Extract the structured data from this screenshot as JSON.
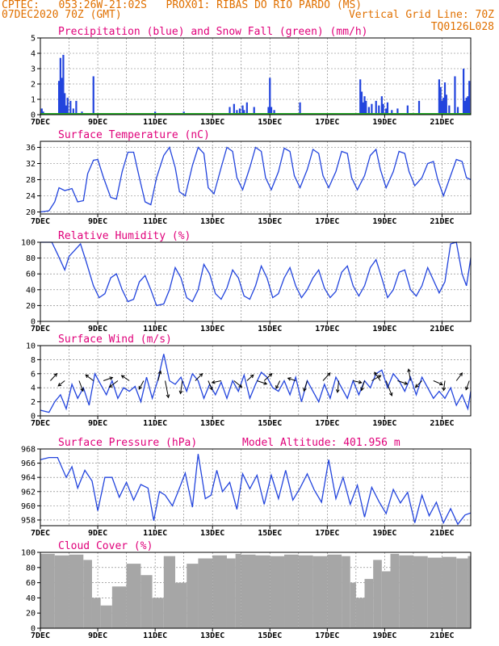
{
  "header": {
    "line1": "CPTEC:   053:26W-21:02S   PROX01: RIBAS DO RIO PARDO (MS)",
    "line2_left": "07DEC2020 70Z (GMT)",
    "line2_right": "Vertical Grid Line: 70Z",
    "line3_right": "TQ0126L028"
  },
  "colors": {
    "header": "#e07000",
    "title": "#e0007a",
    "line": "#2244dd",
    "snow": "#22aa22",
    "cloud": "#a6a6a6"
  },
  "x_axis": {
    "day_min": 7,
    "day_max": 22,
    "ticks": [
      {
        "day": 7,
        "label": "7DEC"
      },
      {
        "day": 9,
        "label": "9DEC"
      },
      {
        "day": 11,
        "label": "11DEC"
      },
      {
        "day": 13,
        "label": "13DEC"
      },
      {
        "day": 15,
        "label": "15DEC"
      },
      {
        "day": 17,
        "label": "17DEC"
      },
      {
        "day": 19,
        "label": "19DEC"
      },
      {
        "day": 21,
        "label": "21DEC"
      }
    ]
  },
  "chart_data": [
    {
      "id": "precip",
      "type": "bar",
      "title": "Precipitation (blue) and Snow Fall (green) (mm/h)",
      "ylim": [
        0,
        5
      ],
      "yticks": [
        0,
        1,
        2,
        3,
        4,
        5
      ],
      "x_day": [
        7.05,
        7.1,
        7.65,
        7.7,
        7.75,
        7.8,
        7.85,
        7.9,
        7.95,
        8.05,
        8.15,
        8.25,
        8.45,
        8.85,
        11.0,
        12.0,
        13.6,
        13.75,
        13.85,
        13.95,
        14.05,
        14.1,
        14.2,
        14.45,
        14.95,
        15.0,
        15.05,
        15.15,
        16.05,
        18.15,
        18.2,
        18.25,
        18.3,
        18.35,
        18.45,
        18.55,
        18.7,
        18.8,
        18.9,
        18.95,
        19.05,
        19.1,
        19.25,
        19.45,
        19.8,
        20.2,
        20.9,
        20.95,
        21.0,
        21.05,
        21.1,
        21.15,
        21.25,
        21.45,
        21.55,
        21.75,
        21.8,
        21.85,
        21.9,
        21.95
      ],
      "values": [
        0.4,
        0.2,
        2.2,
        3.7,
        2.4,
        3.9,
        1.4,
        0.6,
        1.1,
        0.9,
        0.4,
        0.9,
        0.2,
        2.5,
        0.2,
        0.2,
        0.5,
        0.7,
        0.3,
        0.4,
        0.6,
        0.3,
        0.8,
        0.5,
        0.5,
        2.4,
        0.5,
        0.3,
        0.8,
        2.3,
        1.5,
        0.8,
        1.2,
        0.9,
        0.5,
        0.7,
        0.9,
        0.6,
        1.2,
        0.7,
        0.4,
        0.8,
        0.3,
        0.4,
        0.6,
        0.9,
        2.3,
        1.8,
        0.9,
        1.1,
        2.1,
        1.3,
        0.6,
        2.5,
        0.5,
        3.0,
        0.9,
        1.1,
        1.2,
        2.2
      ],
      "snow_note": "snow series ~0 across period"
    },
    {
      "id": "temp",
      "type": "line",
      "title": "Surface Temperature (nC)",
      "ylim": [
        19.5,
        37.5
      ],
      "yticks": [
        20,
        24,
        28,
        32,
        36
      ],
      "x_day": [
        7.0,
        7.3,
        7.5,
        7.65,
        7.85,
        8.1,
        8.3,
        8.5,
        8.65,
        8.85,
        9.0,
        9.2,
        9.45,
        9.65,
        9.85,
        10.05,
        10.25,
        10.45,
        10.65,
        10.85,
        11.05,
        11.3,
        11.5,
        11.7,
        11.85,
        12.05,
        12.3,
        12.5,
        12.7,
        12.85,
        13.05,
        13.3,
        13.5,
        13.7,
        13.85,
        14.05,
        14.3,
        14.5,
        14.7,
        14.85,
        15.05,
        15.3,
        15.5,
        15.7,
        15.85,
        16.05,
        16.3,
        16.5,
        16.7,
        16.85,
        17.05,
        17.3,
        17.5,
        17.7,
        17.85,
        18.05,
        18.3,
        18.5,
        18.7,
        18.85,
        19.05,
        19.3,
        19.5,
        19.7,
        19.85,
        20.05,
        20.3,
        20.5,
        20.7,
        20.85,
        21.05,
        21.3,
        21.5,
        21.7,
        21.85,
        22.0
      ],
      "values": [
        20.0,
        20.3,
        22.5,
        26.0,
        25.3,
        25.8,
        22.5,
        22.8,
        29.5,
        32.8,
        33.0,
        28.5,
        23.6,
        23.2,
        30.0,
        34.8,
        34.8,
        28.5,
        22.5,
        21.8,
        28.5,
        34.0,
        36.0,
        31.0,
        25.0,
        24.0,
        31.5,
        36.0,
        34.5,
        26.0,
        24.5,
        31.0,
        36.0,
        35.0,
        28.5,
        25.5,
        31.0,
        36.0,
        35.0,
        28.5,
        25.5,
        30.0,
        35.8,
        35.0,
        29.0,
        26.0,
        30.5,
        35.5,
        34.5,
        29.0,
        26.0,
        30.0,
        35.0,
        34.5,
        28.5,
        25.5,
        29.0,
        34.0,
        35.5,
        30.5,
        26.0,
        30.0,
        35.0,
        34.5,
        30.0,
        26.5,
        28.5,
        32.0,
        32.5,
        28.0,
        24.0,
        29.0,
        33.0,
        32.5,
        28.5,
        28.0
      ]
    },
    {
      "id": "rh",
      "type": "line",
      "title": "Relative Humidity (%)",
      "ylim": [
        0,
        100
      ],
      "yticks": [
        0,
        20,
        40,
        60,
        80,
        100
      ],
      "x_day": [
        7.0,
        7.4,
        7.6,
        7.85,
        8.0,
        8.2,
        8.4,
        8.6,
        8.85,
        9.05,
        9.25,
        9.45,
        9.65,
        9.85,
        10.05,
        10.25,
        10.45,
        10.65,
        10.85,
        11.05,
        11.3,
        11.5,
        11.7,
        11.9,
        12.1,
        12.3,
        12.5,
        12.7,
        12.9,
        13.1,
        13.3,
        13.5,
        13.7,
        13.9,
        14.1,
        14.3,
        14.5,
        14.7,
        14.9,
        15.1,
        15.3,
        15.5,
        15.7,
        15.9,
        16.1,
        16.3,
        16.5,
        16.7,
        16.9,
        17.1,
        17.3,
        17.5,
        17.7,
        17.9,
        18.1,
        18.3,
        18.5,
        18.7,
        18.9,
        19.1,
        19.3,
        19.5,
        19.7,
        19.9,
        20.1,
        20.3,
        20.5,
        20.7,
        20.9,
        21.1,
        21.3,
        21.5,
        21.7,
        21.85,
        22.0
      ],
      "values": [
        100,
        100,
        85,
        65,
        82,
        90,
        98,
        75,
        45,
        30,
        35,
        55,
        60,
        40,
        25,
        28,
        50,
        58,
        40,
        20,
        22,
        40,
        68,
        55,
        30,
        25,
        40,
        72,
        60,
        35,
        28,
        42,
        65,
        55,
        32,
        28,
        45,
        70,
        55,
        30,
        35,
        55,
        68,
        45,
        30,
        40,
        55,
        65,
        42,
        30,
        38,
        62,
        70,
        45,
        32,
        45,
        68,
        78,
        55,
        30,
        40,
        62,
        65,
        40,
        32,
        45,
        68,
        52,
        36,
        50,
        98,
        100,
        60,
        45,
        80
      ]
    },
    {
      "id": "wind",
      "type": "line",
      "title": "Surface Wind (m/s)",
      "ylim": [
        0,
        10
      ],
      "yticks": [
        0,
        2,
        4,
        6,
        8,
        10
      ],
      "x_day": [
        7.0,
        7.3,
        7.5,
        7.7,
        7.9,
        8.1,
        8.3,
        8.5,
        8.7,
        8.9,
        9.1,
        9.3,
        9.5,
        9.7,
        9.9,
        10.1,
        10.3,
        10.5,
        10.7,
        10.9,
        11.1,
        11.3,
        11.5,
        11.7,
        11.9,
        12.1,
        12.3,
        12.5,
        12.7,
        12.9,
        13.1,
        13.3,
        13.5,
        13.7,
        13.9,
        14.1,
        14.3,
        14.5,
        14.7,
        14.9,
        15.1,
        15.3,
        15.5,
        15.7,
        15.9,
        16.1,
        16.3,
        16.5,
        16.7,
        16.9,
        17.1,
        17.3,
        17.5,
        17.7,
        17.9,
        18.1,
        18.3,
        18.5,
        18.7,
        18.9,
        19.1,
        19.3,
        19.5,
        19.7,
        19.9,
        20.1,
        20.3,
        20.5,
        20.7,
        20.9,
        21.1,
        21.3,
        21.5,
        21.7,
        21.9,
        22.0
      ],
      "values": [
        0.8,
        0.5,
        2.0,
        3.0,
        1.0,
        4.5,
        2.5,
        4.0,
        1.5,
        6.0,
        4.5,
        3.0,
        5.0,
        2.5,
        4.0,
        3.5,
        4.2,
        2.0,
        5.5,
        2.5,
        5.2,
        8.8,
        5.0,
        4.5,
        5.5,
        3.5,
        6.0,
        5.0,
        2.5,
        4.5,
        3.0,
        4.8,
        2.5,
        5.0,
        3.5,
        5.8,
        2.5,
        4.5,
        6.2,
        5.5,
        4.0,
        3.5,
        5.0,
        3.0,
        5.5,
        2.0,
        5.0,
        3.5,
        2.0,
        4.5,
        2.5,
        5.5,
        4.0,
        2.5,
        5.0,
        3.0,
        5.0,
        4.0,
        6.0,
        6.5,
        4.0,
        6.0,
        5.0,
        3.5,
        5.5,
        3.0,
        5.5,
        4.0,
        2.5,
        3.5,
        2.5,
        4.0,
        1.5,
        3.0,
        1.0,
        3.5
      ],
      "arrows": [
        {
          "day": 7.35,
          "dx": 1,
          "dy": -1.1
        },
        {
          "day": 7.85,
          "dx": -1,
          "dy": 0.8
        },
        {
          "day": 8.35,
          "dx": 0.6,
          "dy": 1.6
        },
        {
          "day": 8.85,
          "dx": -1.2,
          "dy": -0.9
        },
        {
          "day": 9.2,
          "dx": 1.4,
          "dy": -0.5
        },
        {
          "day": 9.7,
          "dx": -1.3,
          "dy": 1.0
        },
        {
          "day": 10.1,
          "dx": -1.2,
          "dy": -0.8
        },
        {
          "day": 10.6,
          "dx": -0.7,
          "dy": 1.3
        },
        {
          "day": 11.1,
          "dx": 0.4,
          "dy": -1.5
        },
        {
          "day": 11.35,
          "dx": 0.5,
          "dy": 2.6
        },
        {
          "day": 11.95,
          "dx": -0.3,
          "dy": 2.0
        },
        {
          "day": 12.4,
          "dx": 1.1,
          "dy": -1.1
        },
        {
          "day": 12.85,
          "dx": 0.6,
          "dy": 1.4
        },
        {
          "day": 13.3,
          "dx": -1.4,
          "dy": 0.3
        },
        {
          "day": 13.75,
          "dx": 1.2,
          "dy": 1.0
        },
        {
          "day": 14.2,
          "dx": 1.0,
          "dy": -0.9
        },
        {
          "day": 14.55,
          "dx": 1.5,
          "dy": 0.5
        },
        {
          "day": 14.8,
          "dx": 1.2,
          "dy": -1.1
        },
        {
          "day": 15.35,
          "dx": -0.6,
          "dy": 1.2
        },
        {
          "day": 15.9,
          "dx": -1.2,
          "dy": -0.4
        },
        {
          "day": 16.3,
          "dx": -0.5,
          "dy": 1.6
        },
        {
          "day": 16.85,
          "dx": 1.1,
          "dy": -1.2
        },
        {
          "day": 17.4,
          "dx": -0.2,
          "dy": 1.8
        },
        {
          "day": 17.9,
          "dx": 1.3,
          "dy": 0.3
        },
        {
          "day": 18.3,
          "dx": -0.5,
          "dy": 1.5
        },
        {
          "day": 18.55,
          "dx": 1.4,
          "dy": -0.8
        },
        {
          "day": 18.85,
          "dx": -0.9,
          "dy": -1.3
        },
        {
          "day": 19.05,
          "dx": 0.9,
          "dy": 2.3
        },
        {
          "day": 19.45,
          "dx": 1.5,
          "dy": 0.5
        },
        {
          "day": 19.9,
          "dx": -0.3,
          "dy": -1.8
        },
        {
          "day": 20.3,
          "dx": -1.0,
          "dy": 1.0
        },
        {
          "day": 20.7,
          "dx": 1.4,
          "dy": 0.6
        },
        {
          "day": 21.1,
          "dx": -0.2,
          "dy": 1.5
        },
        {
          "day": 21.5,
          "dx": 0.9,
          "dy": -1.2
        },
        {
          "day": 21.95,
          "dx": -0.5,
          "dy": 1.4
        }
      ]
    },
    {
      "id": "pres",
      "type": "line",
      "title": "Surface Pressure (hPa)",
      "annotation": "Model Altitude: 401.956 m",
      "ylim": [
        957.2,
        968
      ],
      "yticks": [
        958,
        960,
        962,
        964,
        966,
        968
      ],
      "x_day": [
        7.0,
        7.3,
        7.6,
        7.9,
        8.1,
        8.3,
        8.55,
        8.8,
        9.0,
        9.25,
        9.5,
        9.75,
        10.0,
        10.25,
        10.5,
        10.75,
        10.95,
        11.15,
        11.35,
        11.6,
        11.8,
        12.05,
        12.3,
        12.5,
        12.75,
        12.95,
        13.15,
        13.35,
        13.6,
        13.85,
        14.05,
        14.3,
        14.55,
        14.8,
        15.05,
        15.3,
        15.55,
        15.8,
        16.05,
        16.3,
        16.55,
        16.8,
        17.05,
        17.3,
        17.55,
        17.8,
        18.05,
        18.3,
        18.55,
        18.8,
        19.05,
        19.3,
        19.55,
        19.8,
        20.05,
        20.3,
        20.55,
        20.8,
        21.05,
        21.3,
        21.55,
        21.8,
        22.0
      ],
      "values": [
        966.5,
        966.8,
        966.8,
        964.0,
        965.5,
        962.5,
        965.0,
        963.5,
        959.3,
        964.0,
        964.0,
        961.2,
        963.3,
        960.8,
        963.0,
        962.5,
        957.9,
        962.0,
        961.5,
        960.0,
        962.0,
        964.6,
        959.8,
        967.3,
        961.0,
        961.5,
        965.0,
        962.0,
        963.3,
        959.5,
        964.5,
        962.4,
        964.3,
        960.2,
        964.3,
        961.0,
        965.0,
        960.8,
        962.5,
        964.5,
        962.2,
        960.5,
        966.5,
        961.0,
        964.0,
        960.2,
        962.9,
        958.4,
        962.6,
        960.6,
        958.9,
        962.3,
        960.4,
        961.9,
        957.6,
        961.5,
        958.6,
        960.5,
        957.6,
        959.6,
        957.4,
        958.7,
        959.0
      ]
    },
    {
      "id": "cloud",
      "type": "bar",
      "title": "Cloud Cover (%)",
      "ylim": [
        0,
        100
      ],
      "yticks": [
        0,
        20,
        40,
        60,
        80,
        100
      ],
      "x_day": [
        7.0,
        7.5,
        8.0,
        8.5,
        8.8,
        9.1,
        9.5,
        10.0,
        10.5,
        10.9,
        11.3,
        11.7,
        12.1,
        12.5,
        13.0,
        13.5,
        13.8,
        14.0,
        14.5,
        15.0,
        15.5,
        16.0,
        16.5,
        17.0,
        17.5,
        17.8,
        18.0,
        18.3,
        18.6,
        18.9,
        19.2,
        19.5,
        20.0,
        20.5,
        21.0,
        21.5,
        21.9
      ],
      "values": [
        98,
        96,
        97,
        90,
        40,
        30,
        55,
        85,
        70,
        40,
        95,
        60,
        85,
        92,
        96,
        92,
        98,
        97,
        96,
        95,
        97,
        96,
        95,
        97,
        95,
        60,
        40,
        65,
        90,
        75,
        98,
        96,
        95,
        93,
        94,
        92,
        95
      ]
    }
  ]
}
